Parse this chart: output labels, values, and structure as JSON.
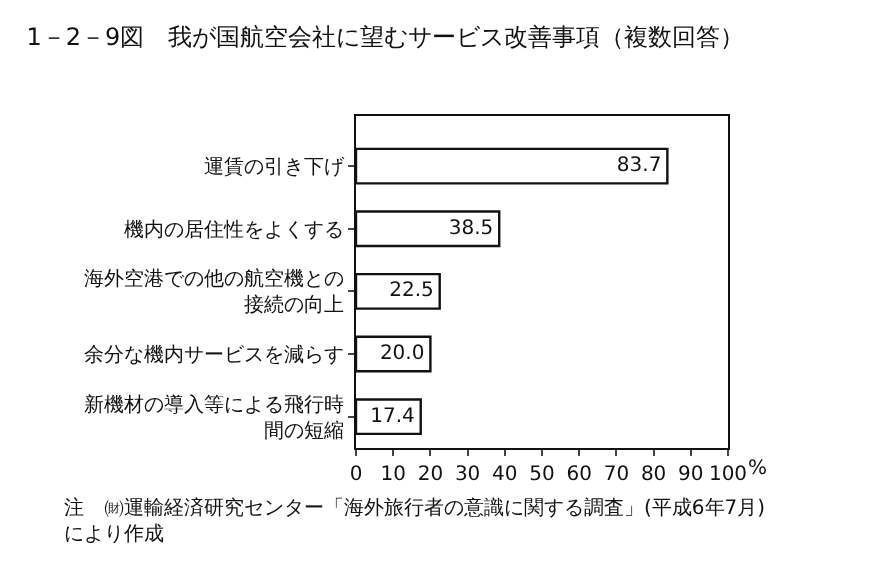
{
  "chart_data": {
    "type": "bar",
    "orientation": "horizontal",
    "title": "1－2－9図　我が国航空会社に望むサービス改善事項（複数回答）",
    "xlabel": "%",
    "categories": [
      "運賃の引き下げ",
      "機内の居住性をよくする",
      "海外空港での他の航空機との接続の向上",
      "余分な機内サービスを減らす",
      "新機材の導入等による飛行時間の短縮"
    ],
    "values": [
      83.7,
      38.5,
      22.5,
      20.0,
      17.4
    ],
    "value_labels": [
      "83.7",
      "38.5",
      "22.5",
      "20.0",
      "17.4"
    ],
    "color": "#ffffff",
    "xlim": [
      0,
      100
    ],
    "xticks": [
      0,
      10,
      20,
      30,
      40,
      50,
      60,
      70,
      80,
      90,
      100
    ],
    "legend": false,
    "annotations": [
      "注　㈶運輸経済研究センター「海外旅行者の意識に関する調査」(平成6年7月)\nにより作成"
    ]
  }
}
